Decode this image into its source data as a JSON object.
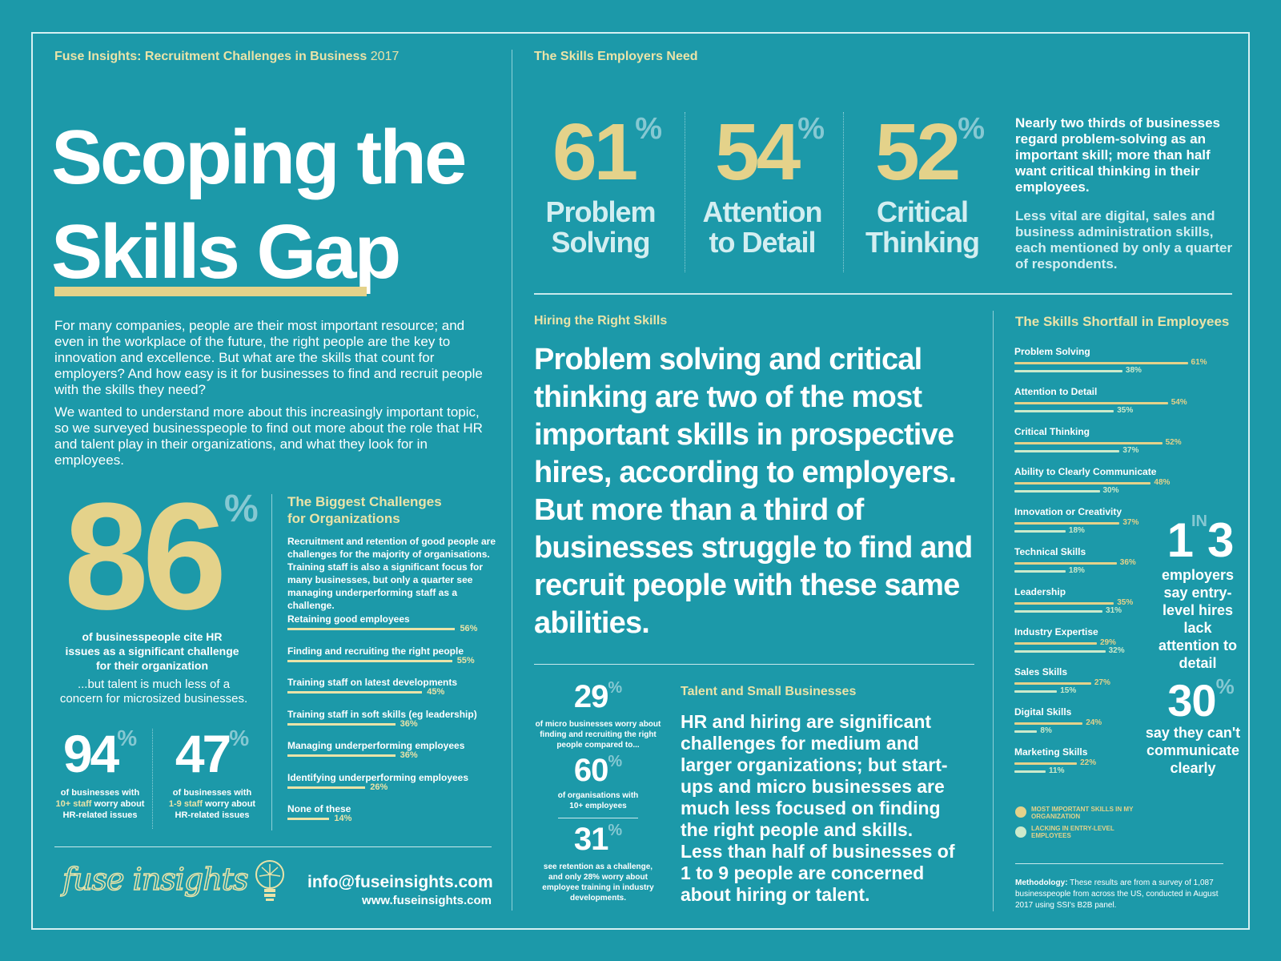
{
  "header": {
    "kicker": "Fuse Insights: Recruitment Challenges in Business",
    "year": "2017",
    "title_line1": "Scoping the",
    "title_line2": "Skills Gap"
  },
  "intro": {
    "p1": "For many companies, people are their most important resource; and even in the workplace of the future, the right people are the key to innovation and excellence. But what are the skills that count for employers? And how easy is it for businesses to find and recruit people with the skills they need?",
    "p2": "We wanted to understand more about this increasingly important topic, so we surveyed businesspeople to find out more about the role that HR and talent play in their organizations, and what they look for in employees."
  },
  "hr_stat": {
    "value": "86",
    "pct": "%",
    "caption": "of businesspeople cite HR issues as a significant challenge for their organization",
    "note": "...but talent is much less of a concern for microsized businesses."
  },
  "small_stats": [
    {
      "value": "94",
      "pct": "%",
      "caption_a": "of businesses with",
      "caption_b": "10+ staff",
      "caption_c": " worry about HR-related issues"
    },
    {
      "value": "47",
      "pct": "%",
      "caption_a": "of businesses with",
      "caption_b": "1-9 staff",
      "caption_c": " worry about HR-related issues"
    }
  ],
  "challenges": {
    "title_line1": "The Biggest Challenges",
    "title_line2": "for Organizations",
    "text": "Recruitment and retention of good people are challenges for the majority of organisations. Training staff is also a significant focus for many businesses, but only a quarter see managing underperforming staff as a challenge.",
    "items": [
      {
        "label": "Retaining good employees",
        "value": 56,
        "value_label": "56%"
      },
      {
        "label": "Finding and recruiting the right people",
        "value": 55,
        "value_label": "55%"
      },
      {
        "label": "Training staff on latest developments",
        "value": 45,
        "value_label": "45%"
      },
      {
        "label": "Training staff in soft skills (eg leadership)",
        "value": 36,
        "value_label": "36%"
      },
      {
        "label": "Managing underperforming employees",
        "value": 36,
        "value_label": "36%"
      },
      {
        "label": "Identifying underperforming employees",
        "value": 26,
        "value_label": "26%"
      },
      {
        "label": "None of these",
        "value": 14,
        "value_label": "14%"
      }
    ]
  },
  "footer": {
    "logo": "fuse insights",
    "email": "info@fuseinsights.com",
    "website": "www.fuseinsights.com"
  },
  "skills_need": {
    "title": "The Skills Employers Need",
    "stats": [
      {
        "value": "61",
        "pct": "%",
        "label_line1": "Problem",
        "label_line2": "Solving"
      },
      {
        "value": "54",
        "pct": "%",
        "label_line1": "Attention",
        "label_line2": "to Detail"
      },
      {
        "value": "52",
        "pct": "%",
        "label_line1": "Critical",
        "label_line2": "Thinking"
      }
    ],
    "text1": "Nearly two thirds of businesses regard problem-solving as an important skill; more than half want critical thinking in their employees.",
    "text2": "Less vital are digital, sales and business administration skills, each mentioned by only a quarter of respondents."
  },
  "hiring": {
    "title": "Hiring the Right Skills",
    "text": "Problem solving and critical thinking are two of the most important skills in prospective hires, according to employers. But more than a third of businesses struggle to find and recruit people with these same abilities."
  },
  "micro_stats": [
    {
      "value": "29",
      "pct": "%",
      "caption": "of micro businesses worry about finding and recruiting the right people compared to..."
    },
    {
      "value": "60",
      "pct": "%",
      "caption": "of organisations with 10+ employees"
    },
    {
      "value": "31",
      "pct": "%",
      "caption": "see retention as a challenge, and only 28% worry about employee training in industry developments."
    }
  ],
  "talent": {
    "title": "Talent and Small Businesses",
    "text": "HR and hiring are significant challenges for medium and larger organizations; but start-ups and micro businesses are much less focused on finding the right people and skills. Less than half of businesses of 1 to 9 people are concerned about hiring or talent."
  },
  "shortfall": {
    "title": "The Skills Shortfall in Employees",
    "chart_data": {
      "type": "bar",
      "categories": [
        "Problem Solving",
        "Attention to Detail",
        "Critical Thinking",
        "Ability to Clearly Communicate",
        "Innovation or Creativity",
        "Technical Skills",
        "Leadership",
        "Industry Expertise",
        "Sales Skills",
        "Digital Skills",
        "Marketing Skills"
      ],
      "series": [
        {
          "name": "MOST IMPORTANT SKILLS IN MY ORGANIZATION",
          "color": "#e4d28a",
          "values": [
            61,
            54,
            52,
            48,
            37,
            36,
            35,
            29,
            27,
            24,
            22
          ]
        },
        {
          "name": "LACKING IN ENTRY-LEVEL EMPLOYEES",
          "color": "#cdeacb",
          "values": [
            38,
            35,
            37,
            30,
            18,
            18,
            31,
            32,
            15,
            8,
            11
          ]
        }
      ],
      "value_suffix": "%",
      "orientation": "horizontal",
      "legend": "bottom"
    },
    "legend_line1_a": "MOST IMPORTANT SKILLS IN MY",
    "legend_line1_b": "ORGANIZATION",
    "legend_line2_a": "LACKING IN ENTRY-LEVEL",
    "legend_line2_b": "EMPLOYEES"
  },
  "side_stats": {
    "one": "1",
    "in": "IN",
    "three": "3",
    "one_in_three_caption": "employers say entry-level hires lack attention to detail",
    "thirty": "30",
    "thirty_pct": "%",
    "thirty_caption": "say they can't communicate clearly"
  },
  "methodology": {
    "label": "Methodology:",
    "text": " These results are from a survey of 1,087 businesspeople from across the US, conducted in August 2017 using SSI's B2B panel."
  }
}
